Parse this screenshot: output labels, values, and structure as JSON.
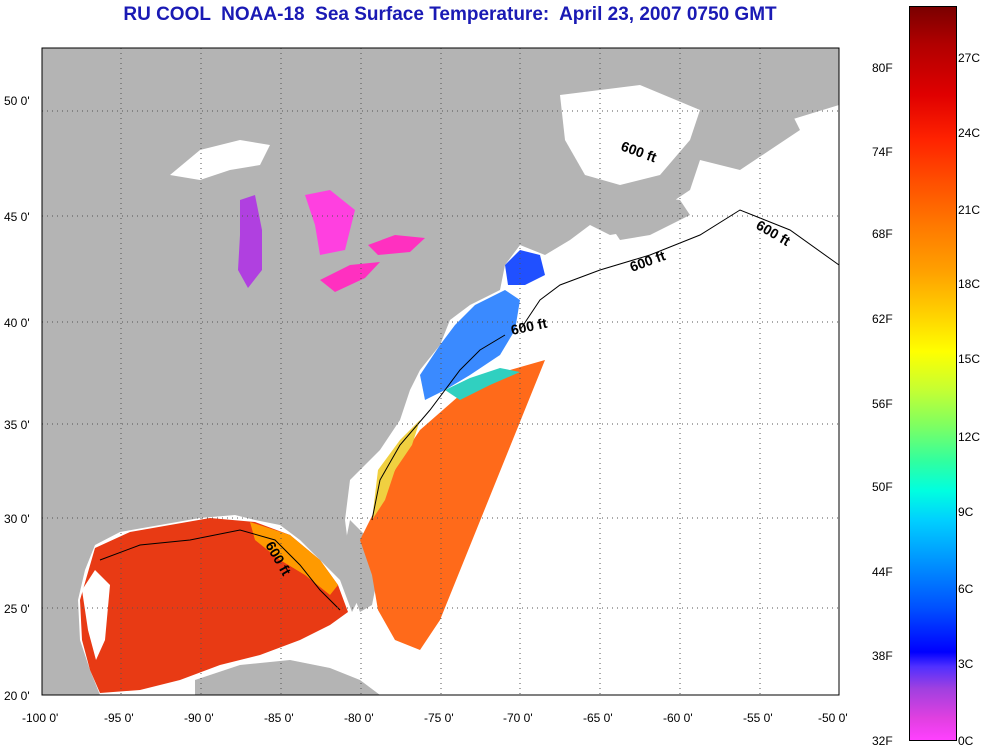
{
  "title": "RU COOL  NOAA-18  Sea Surface Temperature:  April 23, 2007 0750 GMT",
  "map": {
    "lat_labels": [
      "50 0'",
      "45 0'",
      "40 0'",
      "35 0'",
      "30 0'",
      "25 0'",
      "20 0'"
    ],
    "lon_labels": [
      "-100 0'",
      "-95 0'",
      "-90 0'",
      "-85 0'",
      "-80 0'",
      "-75 0'",
      "-70 0'",
      "-65 0'",
      "-60 0'",
      "-55 0'",
      "-50 0'"
    ],
    "isobath_labels": [
      "600 ft",
      "600 ft",
      "600 ft",
      "600 ft",
      "600 ft"
    ],
    "colors": {
      "land": "#b4b4b4",
      "no_data": "#ffffff",
      "grid": "#555555"
    }
  },
  "colorbar": {
    "fahrenheit": [
      "80F",
      "74F",
      "68F",
      "62F",
      "56F",
      "50F",
      "44F",
      "38F",
      "32F"
    ],
    "celsius": [
      "27C",
      "24C",
      "21C",
      "18C",
      "15C",
      "12C",
      "9C",
      "6C",
      "3C",
      "0C"
    ]
  }
}
